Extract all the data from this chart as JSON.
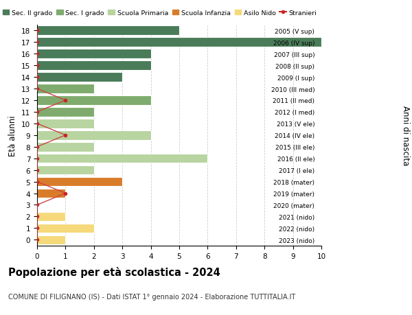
{
  "ages": [
    18,
    17,
    16,
    15,
    14,
    13,
    12,
    11,
    10,
    9,
    8,
    7,
    6,
    5,
    4,
    3,
    2,
    1,
    0
  ],
  "years": [
    "2005 (V sup)",
    "2006 (IV sup)",
    "2007 (III sup)",
    "2008 (II sup)",
    "2009 (I sup)",
    "2010 (III med)",
    "2011 (II med)",
    "2012 (I med)",
    "2013 (V ele)",
    "2014 (IV ele)",
    "2015 (III ele)",
    "2016 (II ele)",
    "2017 (I ele)",
    "2018 (mater)",
    "2019 (mater)",
    "2020 (mater)",
    "2021 (nido)",
    "2022 (nido)",
    "2023 (nido)"
  ],
  "bar_values": [
    5,
    10,
    4,
    4,
    3,
    2,
    4,
    2,
    2,
    4,
    2,
    6,
    2,
    3,
    1,
    0,
    1,
    2,
    1
  ],
  "bar_colors": [
    "#4a7c59",
    "#4a7c59",
    "#4a7c59",
    "#4a7c59",
    "#4a7c59",
    "#7fac6e",
    "#7fac6e",
    "#7fac6e",
    "#b8d4a0",
    "#b8d4a0",
    "#b8d4a0",
    "#b8d4a0",
    "#b8d4a0",
    "#d97c2a",
    "#d97c2a",
    "#d97c2a",
    "#f5d97a",
    "#f5d97a",
    "#f5d97a"
  ],
  "stranieri_x": [
    0,
    0,
    0,
    0,
    0,
    0,
    1,
    0,
    0,
    1,
    0,
    0,
    0,
    0,
    1,
    0,
    0,
    0,
    0
  ],
  "legend_labels": [
    "Sec. II grado",
    "Sec. I grado",
    "Scuola Primaria",
    "Scuola Infanzia",
    "Asilo Nido",
    "Stranieri"
  ],
  "legend_colors": [
    "#4a7c59",
    "#7fac6e",
    "#b8d4a0",
    "#d97c2a",
    "#f5d97a",
    "#cc2222"
  ],
  "ylabel": "Età alunni",
  "ylabel_right": "Anni di nascita",
  "title": "Popolazione per età scolastica - 2024",
  "subtitle": "COMUNE DI FILIGNANO (IS) - Dati ISTAT 1° gennaio 2024 - Elaborazione TUTTITALIA.IT",
  "xlim": [
    0,
    10
  ],
  "bg_color": "#ffffff",
  "bar_edge_color": "#ffffff",
  "stranieri_color": "#cc2222",
  "stranieri_line_color": "#cc4444",
  "grid_color": "#cccccc"
}
